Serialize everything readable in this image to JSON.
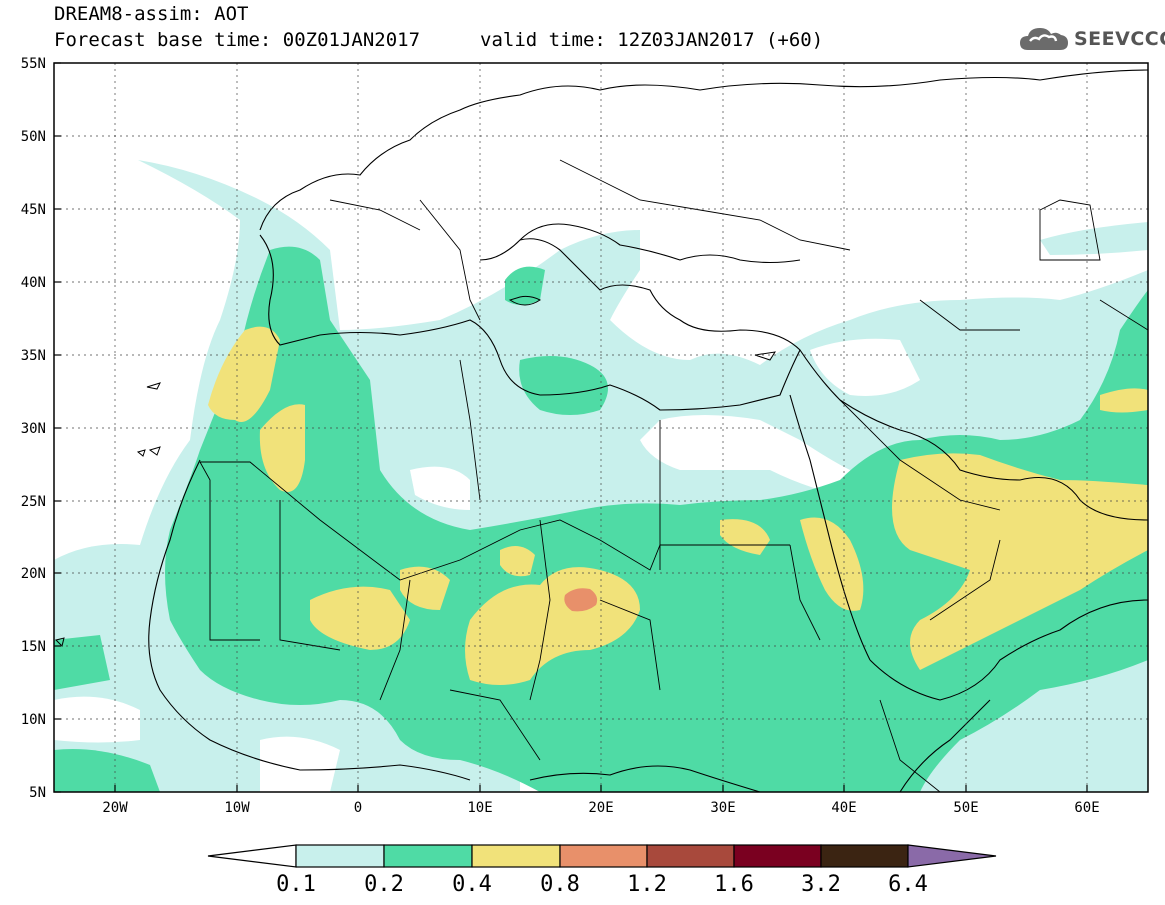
{
  "header": {
    "title": "DREAM8-assim: AOT",
    "base_time": "Forecast base time: 00Z01JAN2017",
    "valid_time": "valid time: 12Z03JAN2017 (+60)"
  },
  "logo": {
    "text": "SEEVCCC",
    "icon": "cloud-icon"
  },
  "map": {
    "lat_labels": [
      "55N",
      "50N",
      "45N",
      "40N",
      "35N",
      "30N",
      "25N",
      "20N",
      "15N",
      "10N",
      "5N"
    ],
    "lon_labels": [
      "20W",
      "10W",
      "0",
      "10E",
      "20E",
      "30E",
      "40E",
      "50E",
      "60E"
    ],
    "lon_range": [
      -25,
      65
    ],
    "lat_range": [
      5,
      55
    ]
  },
  "colorbar": {
    "levels": [
      "0.1",
      "0.2",
      "0.4",
      "0.8",
      "1.2",
      "1.6",
      "3.2",
      "6.4"
    ],
    "colors": [
      "#c8f0ec",
      "#4fdba5",
      "#f1e27a",
      "#e8906a",
      "#a8493c",
      "#7a0020",
      "#3b2412",
      "#8a6aa8"
    ],
    "under_color": "#ffffff"
  },
  "colors": {
    "low": "#c8f0ec",
    "moderate": "#4fdba5",
    "high": "#f1e27a",
    "very_high": "#e8906a",
    "coastline": "#000000"
  }
}
